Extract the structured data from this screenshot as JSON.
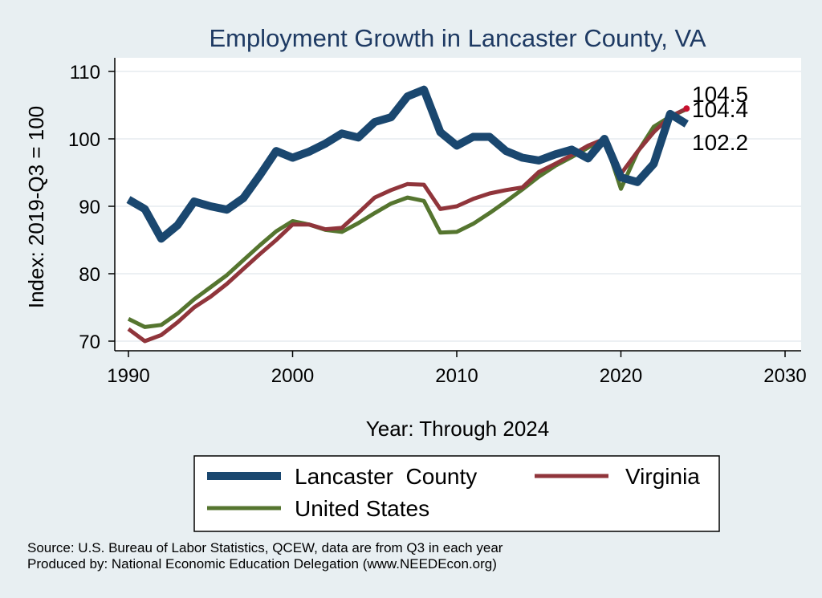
{
  "chart_data": {
    "type": "line",
    "title": "Employment Growth in Lancaster County, VA",
    "xlabel": "Year: Through 2024",
    "ylabel": "Index: 2019-Q3 = 100",
    "xlim": [
      1990,
      2030
    ],
    "ylim": [
      70,
      110
    ],
    "xticks": [
      "1990",
      "2000",
      "2010",
      "2020",
      "2030"
    ],
    "yticks": [
      "70",
      "80",
      "90",
      "100",
      "110"
    ],
    "x": [
      1990,
      1991,
      1992,
      1993,
      1994,
      1995,
      1996,
      1997,
      1998,
      1999,
      2000,
      2001,
      2002,
      2003,
      2004,
      2005,
      2006,
      2007,
      2008,
      2009,
      2010,
      2011,
      2012,
      2013,
      2014,
      2015,
      2016,
      2017,
      2018,
      2019,
      2020,
      2021,
      2022,
      2023,
      2024
    ],
    "series": [
      {
        "name": "Lancaster  County",
        "color": "#1a476f",
        "values": [
          91.0,
          89.6,
          85.2,
          87.2,
          90.7,
          90.0,
          89.5,
          91.2,
          94.6,
          98.2,
          97.2,
          98.1,
          99.3,
          100.8,
          100.2,
          102.5,
          103.2,
          106.3,
          107.3,
          101.0,
          99.0,
          100.3,
          100.3,
          98.2,
          97.2,
          96.8,
          97.7,
          98.4,
          97.1,
          100.0,
          94.3,
          93.6,
          96.3,
          103.7,
          102.2
        ]
      },
      {
        "name": "Virginia",
        "color": "#90353b",
        "values": [
          71.8,
          70.0,
          70.9,
          72.8,
          75.0,
          76.6,
          78.5,
          80.7,
          82.9,
          85.0,
          87.3,
          87.3,
          86.6,
          86.8,
          89.0,
          91.3,
          92.4,
          93.3,
          93.2,
          89.6,
          90.0,
          91.1,
          91.9,
          92.4,
          92.8,
          95.1,
          96.3,
          97.6,
          99.0,
          100.0,
          94.8,
          98.1,
          101.0,
          103.3,
          104.5
        ]
      },
      {
        "name": "United States",
        "color": "#55752f",
        "values": [
          73.3,
          72.1,
          72.4,
          74.1,
          76.2,
          78.0,
          79.8,
          82.0,
          84.2,
          86.3,
          87.8,
          87.3,
          86.5,
          86.2,
          87.5,
          89.0,
          90.4,
          91.3,
          90.8,
          86.1,
          86.2,
          87.4,
          89.0,
          90.7,
          92.5,
          94.4,
          96.0,
          97.3,
          98.7,
          100.0,
          92.6,
          98.0,
          101.8,
          103.3,
          104.4
        ]
      }
    ],
    "end_labels": [
      "104.5",
      "104.4",
      "102.2"
    ],
    "legend_position": "bottom",
    "grid": true
  },
  "source_line": "Source: U.S. Bureau of Labor Statistics, QCEW, data are from Q3 in each year",
  "produced_line": "Produced by: National Economic Education Delegation (www.NEEDEcon.org)"
}
